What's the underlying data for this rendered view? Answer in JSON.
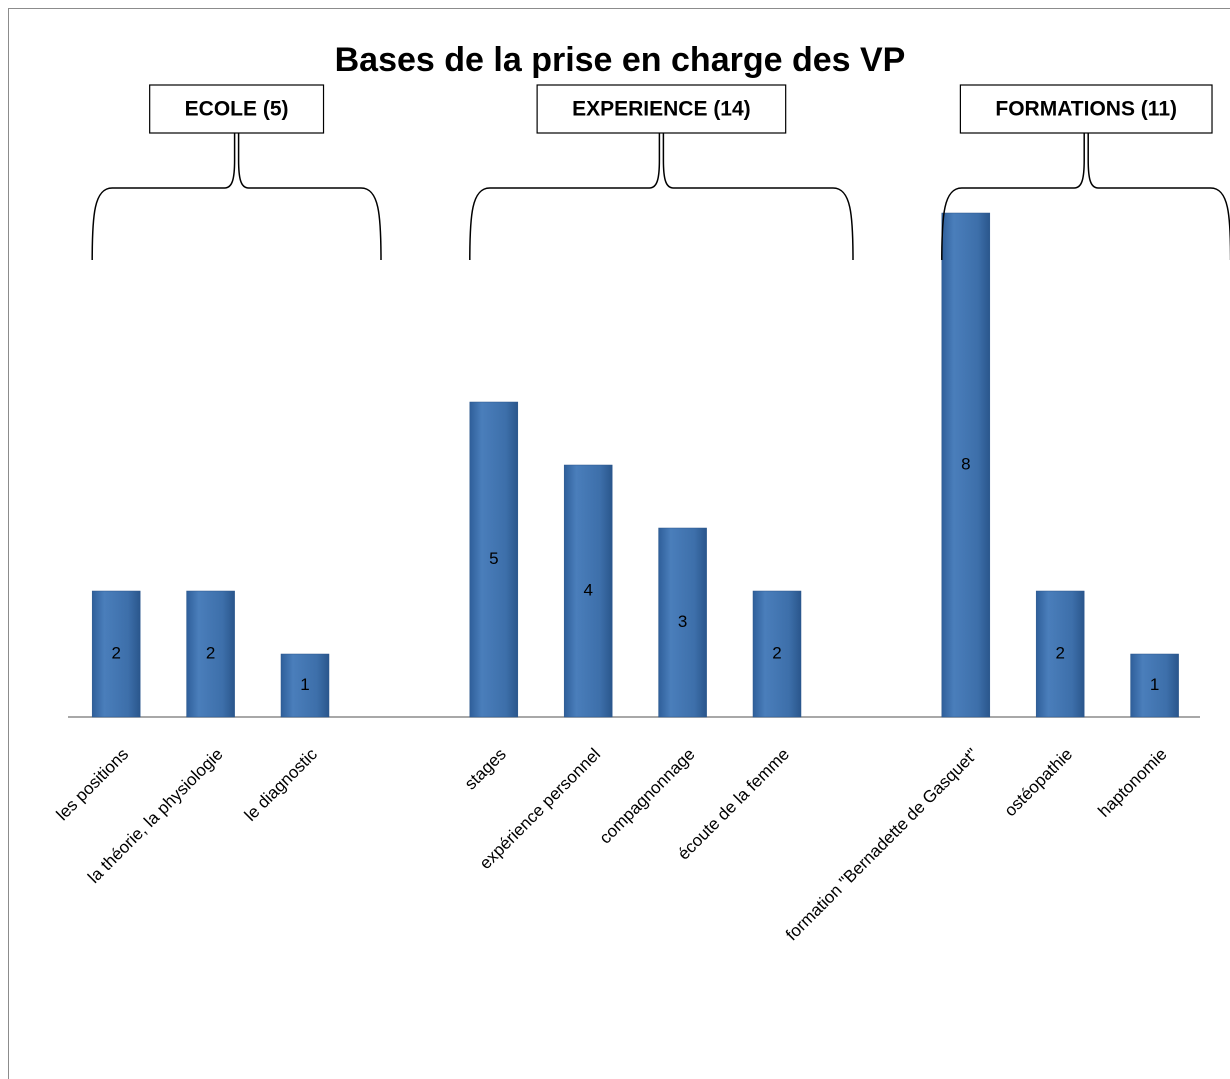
{
  "chart_data": {
    "type": "bar",
    "title": "Bases de la prise en charge des VP",
    "groups": [
      "ECOLE (5)",
      "EXPERIENCE (14)",
      "FORMATIONS (11)"
    ],
    "categories": [
      "les positions",
      "la théorie, la physiologie",
      "le diagnostic",
      null,
      "stages",
      "expérience personnel",
      "compagnonnage",
      "écoute de la femme",
      null,
      "formation \"Bernadette de Gasquet\"",
      "ostéopathie",
      "haptonomie"
    ],
    "values": [
      2,
      2,
      1,
      null,
      5,
      4,
      3,
      2,
      null,
      8,
      2,
      1
    ],
    "color": "#4a7ebb",
    "ylim": [
      0,
      9
    ]
  }
}
